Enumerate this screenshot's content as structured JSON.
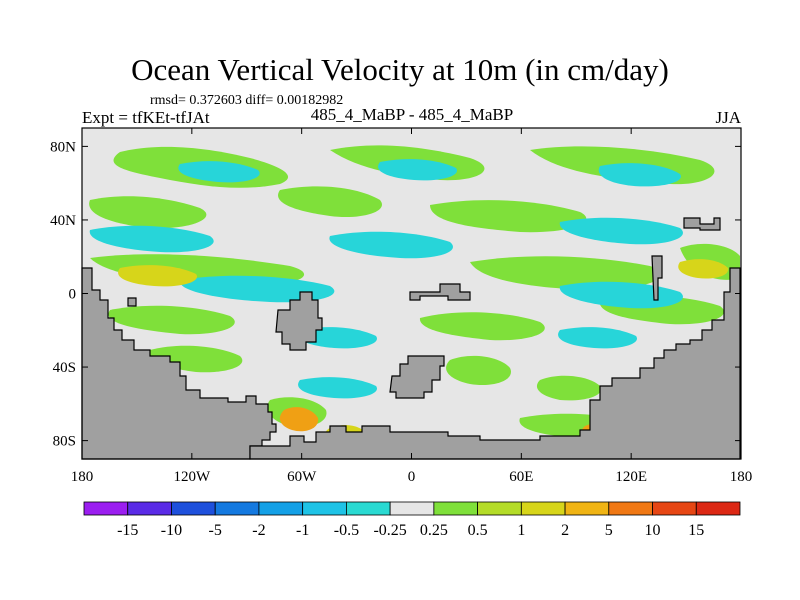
{
  "title": "Ocean Vertical Velocity at 10m (in cm/day)",
  "stats_text": "rmsd= 0.372603 diff= 0.00182982",
  "experiment_label": "Expt = tfKEt-tfJAt",
  "center_label": "485_4_MaBP - 485_4_MaBP",
  "season_label": "JJA",
  "colors": {
    "land": "#a0a0a0",
    "ocean_neutral": "#e6e6e6",
    "green": "#7fe03a",
    "cyan": "#27d5d9",
    "yellow": "#d7d51a",
    "orange": "#f0a014"
  },
  "chart_data": {
    "type": "heatmap",
    "title": "Ocean Vertical Velocity at 10m (in cm/day)",
    "x_axis": {
      "ticks": [
        "180",
        "120W",
        "60W",
        "0",
        "60E",
        "120E",
        "180"
      ],
      "range": [
        -180,
        180
      ]
    },
    "y_axis": {
      "ticks": [
        "80N",
        "40N",
        "0",
        "40S",
        "80S"
      ],
      "range": [
        -90,
        90
      ]
    },
    "colorbar": {
      "levels": [
        "-15",
        "-10",
        "-5",
        "-2",
        "-1",
        "-0.5",
        "-0.25",
        "0.25",
        "0.5",
        "1",
        "2",
        "5",
        "10",
        "15"
      ],
      "colors": [
        "#9b1ef0",
        "#5a2be6",
        "#1e50dc",
        "#1479e0",
        "#14a0e6",
        "#1ec3e6",
        "#2adad2",
        "#e6e6e6",
        "#7fe03a",
        "#b4dc28",
        "#d7d51a",
        "#f0b414",
        "#f07814",
        "#e64614",
        "#dc2814"
      ]
    }
  }
}
